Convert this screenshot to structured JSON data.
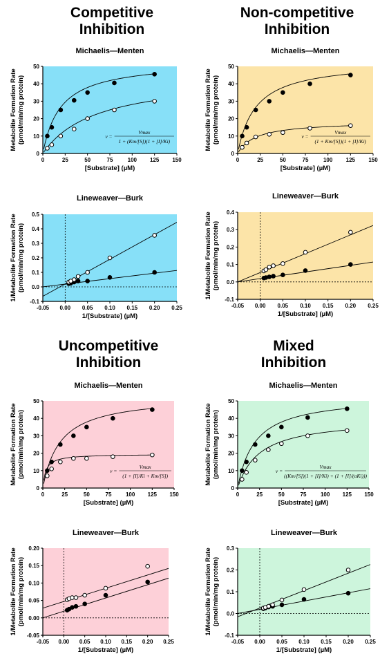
{
  "panels": [
    {
      "title_lines": [
        "Competitive",
        "Inhibition"
      ],
      "bg": "#87e0f8",
      "equation": {
        "lhs": "v =",
        "numerator": "Vmax",
        "denominator": "1 + (Km/[S])(1 + [I]/Ki)"
      }
    },
    {
      "title_lines": [
        "Non-competitive",
        "Inhibition"
      ],
      "bg": "#fce4a8",
      "equation": {
        "lhs": "v =",
        "numerator": "Vmax",
        "denominator": "(1 + Km/[S])(1 + [I]/Ki)"
      }
    },
    {
      "title_lines": [
        "Uncompetitive",
        "Inhibition"
      ],
      "bg": "#fdd0d8",
      "equation": {
        "lhs": "v =",
        "numerator": "Vmax",
        "denominator": "(1 + [I]/Ki + Km/[S])"
      }
    },
    {
      "title_lines": [
        "Mixed",
        "Inhibition"
      ],
      "bg": "#cdf5dc",
      "equation": {
        "lhs": "v =",
        "numerator": "Vmax",
        "denominator": "((Km/[S])(1 + [I]/Ki) + (1 + [I]/(αKi)))"
      }
    }
  ],
  "chart_data": [
    {
      "type": "scatter",
      "title": "Michaelis—Menten",
      "panel": "Competitive Inhibition",
      "xlabel": "[Substrate] (µM)",
      "ylabel": "Metabolite Formation Rate (pmol/min/mg protein)",
      "xlim": [
        0,
        150
      ],
      "ylim": [
        0,
        50
      ],
      "xticks": [
        0,
        25,
        50,
        75,
        100,
        125,
        150
      ],
      "yticks": [
        0,
        10,
        20,
        30,
        40,
        50
      ],
      "series": [
        {
          "marker": "filled",
          "x": [
            5,
            10,
            20,
            35,
            50,
            80,
            125
          ],
          "y": [
            10,
            15,
            25,
            30.5,
            35,
            40.5,
            45.5
          ],
          "fit": {
            "model": "mm",
            "vmax": 53,
            "km": 20
          }
        },
        {
          "marker": "open",
          "x": [
            5,
            10,
            20,
            35,
            50,
            80,
            125
          ],
          "y": [
            3,
            5,
            10,
            14,
            20,
            25,
            30
          ],
          "fit": {
            "model": "mm",
            "vmax": 45,
            "km": 60
          }
        }
      ]
    },
    {
      "type": "scatter",
      "title": "Michaelis—Menten",
      "panel": "Non-competitive Inhibition",
      "xlabel": "[Substrate] (µM)",
      "ylabel": "Metabolite Formation Rate (pmol/min/mg protein)",
      "xlim": [
        0,
        150
      ],
      "ylim": [
        0,
        50
      ],
      "xticks": [
        0,
        25,
        50,
        75,
        100,
        125,
        150
      ],
      "yticks": [
        0,
        10,
        20,
        30,
        40,
        50
      ],
      "series": [
        {
          "marker": "filled",
          "x": [
            5,
            10,
            20,
            35,
            50,
            80,
            125
          ],
          "y": [
            10,
            15,
            25,
            30,
            35,
            40,
            45
          ],
          "fit": {
            "model": "mm",
            "vmax": 53,
            "km": 20
          }
        },
        {
          "marker": "open",
          "x": [
            5,
            10,
            20,
            35,
            50,
            80,
            125
          ],
          "y": [
            3.5,
            6,
            9.5,
            11,
            12,
            14.5,
            16
          ],
          "fit": {
            "model": "mm",
            "vmax": 18.5,
            "km": 20
          }
        }
      ]
    },
    {
      "type": "scatter",
      "title": "Michaelis—Menten",
      "panel": "Uncompetitive Inhibition",
      "xlabel": "[Substrate] (µM)",
      "ylabel": "Metabolite Formation Rate (pmol/min/mg protein)",
      "xlim": [
        0,
        150
      ],
      "ylim": [
        0,
        50
      ],
      "xticks": [
        0,
        25,
        50,
        75,
        100,
        125,
        150
      ],
      "yticks": [
        0,
        10,
        20,
        30,
        40,
        50
      ],
      "series": [
        {
          "marker": "filled",
          "x": [
            5,
            10,
            20,
            35,
            50,
            80,
            125
          ],
          "y": [
            10,
            15,
            25,
            30,
            35,
            40,
            45
          ],
          "fit": {
            "model": "mm",
            "vmax": 53,
            "km": 20
          }
        },
        {
          "marker": "open",
          "x": [
            5,
            10,
            20,
            35,
            50,
            80,
            125
          ],
          "y": [
            7,
            11,
            15,
            17,
            17,
            18,
            19
          ],
          "fit": {
            "model": "mm",
            "vmax": 19.5,
            "km": 3.5
          }
        }
      ]
    },
    {
      "type": "scatter",
      "title": "Michaelis—Menten",
      "panel": "Mixed Inhibition",
      "xlabel": "[Substrate] (µM)",
      "ylabel": "Metabolite Formation Rate (pmol/min/mg protein)",
      "xlim": [
        0,
        150
      ],
      "ylim": [
        0,
        50
      ],
      "xticks": [
        0,
        25,
        50,
        75,
        100,
        125,
        150
      ],
      "yticks": [
        0,
        10,
        20,
        30,
        40,
        50
      ],
      "series": [
        {
          "marker": "filled",
          "x": [
            5,
            10,
            20,
            35,
            50,
            80,
            125
          ],
          "y": [
            10,
            15,
            25,
            30,
            35,
            40.5,
            45.5
          ],
          "fit": {
            "model": "mm",
            "vmax": 53,
            "km": 20
          }
        },
        {
          "marker": "open",
          "x": [
            5,
            10,
            20,
            35,
            50,
            80,
            125
          ],
          "y": [
            5,
            9,
            16,
            22,
            25.5,
            30,
            33
          ],
          "fit": {
            "model": "mm",
            "vmax": 40,
            "km": 25
          }
        }
      ]
    },
    {
      "type": "scatter",
      "title": "Lineweaver—Burk",
      "panel": "Competitive Inhibition",
      "xlabel": "1/[Substrate] (µM)",
      "ylabel": "1/Metabolite Formation Rate (pmol/min/mg protein)",
      "xlim": [
        -0.05,
        0.25
      ],
      "ylim": [
        -0.1,
        0.5
      ],
      "xticks": [
        -0.05,
        0,
        0.05,
        0.1,
        0.15,
        0.2,
        0.25
      ],
      "yticks": [
        -0.1,
        0,
        0.1,
        0.2,
        0.3,
        0.4,
        0.5
      ],
      "xtick_labels": [
        "-0.05",
        "0.00",
        "0.05",
        "0.10",
        "0.15",
        "0.20",
        "0.25"
      ],
      "ytick_labels": [
        "-0.1",
        "0.0",
        "0.1",
        "0.2",
        "0.3",
        "0.4",
        "0.5"
      ],
      "series": [
        {
          "marker": "filled",
          "x": [
            0.008,
            0.0125,
            0.02,
            0.029,
            0.05,
            0.1,
            0.2
          ],
          "y": [
            0.022,
            0.025,
            0.033,
            0.04,
            0.04,
            0.065,
            0.1
          ],
          "fit": {
            "model": "linear",
            "slope": 0.378,
            "intercept": 0.019
          }
        },
        {
          "marker": "open",
          "x": [
            0.008,
            0.0125,
            0.02,
            0.029,
            0.05,
            0.1,
            0.2
          ],
          "y": [
            0.033,
            0.04,
            0.05,
            0.072,
            0.1,
            0.2,
            0.355
          ],
          "fit": {
            "model": "linear",
            "slope": 1.7,
            "intercept": 0.02
          }
        }
      ]
    },
    {
      "type": "scatter",
      "title": "Lineweaver—Burk",
      "panel": "Non-competitive Inhibition",
      "xlabel": "1/[Substrate] (µM)",
      "ylabel": "1/Metabolite Formation Rate (pmol/min/mg protein)",
      "xlim": [
        -0.05,
        0.25
      ],
      "ylim": [
        -0.1,
        0.4
      ],
      "xticks": [
        -0.05,
        0,
        0.05,
        0.1,
        0.15,
        0.2,
        0.25
      ],
      "yticks": [
        -0.1,
        0,
        0.1,
        0.2,
        0.3,
        0.4
      ],
      "xtick_labels": [
        "-0.05",
        "0.00",
        "0.05",
        "0.10",
        "0.15",
        "0.20",
        "0.25"
      ],
      "ytick_labels": [
        "-0.1",
        "0.0",
        "0.1",
        "0.2",
        "0.3",
        "0.4"
      ],
      "series": [
        {
          "marker": "filled",
          "x": [
            0.008,
            0.0125,
            0.02,
            0.029,
            0.05,
            0.1,
            0.2
          ],
          "y": [
            0.022,
            0.025,
            0.029,
            0.033,
            0.04,
            0.065,
            0.1
          ],
          "fit": {
            "model": "linear",
            "slope": 0.38,
            "intercept": 0.019
          }
        },
        {
          "marker": "open",
          "x": [
            0.008,
            0.0125,
            0.02,
            0.029,
            0.05,
            0.1,
            0.2
          ],
          "y": [
            0.063,
            0.07,
            0.085,
            0.093,
            0.105,
            0.17,
            0.285
          ],
          "fit": {
            "model": "linear",
            "slope": 1.08,
            "intercept": 0.054
          }
        }
      ]
    },
    {
      "type": "scatter",
      "title": "Lineweaver—Burk",
      "panel": "Uncompetitive Inhibition",
      "xlabel": "1/[Substrate] (µM)",
      "ylabel": "1/Metabolite Formation Rate (pmol/min/mg protein)",
      "xlim": [
        -0.05,
        0.25
      ],
      "ylim": [
        -0.05,
        0.2
      ],
      "xticks": [
        -0.05,
        0,
        0.05,
        0.1,
        0.15,
        0.2,
        0.25
      ],
      "yticks": [
        -0.05,
        0,
        0.05,
        0.1,
        0.15,
        0.2
      ],
      "xtick_labels": [
        "-0.05",
        "0.00",
        "0.05",
        "0.10",
        "0.15",
        "0.20",
        "0.25"
      ],
      "ytick_labels": [
        "-0.05",
        "0.00",
        "0.05",
        "0.10",
        "0.15",
        "0.20"
      ],
      "series": [
        {
          "marker": "filled",
          "x": [
            0.008,
            0.0125,
            0.02,
            0.029,
            0.05,
            0.1,
            0.2
          ],
          "y": [
            0.022,
            0.025,
            0.03,
            0.033,
            0.04,
            0.065,
            0.103
          ],
          "fit": {
            "model": "linear",
            "slope": 0.38,
            "intercept": 0.019
          }
        },
        {
          "marker": "open",
          "x": [
            0.008,
            0.0125,
            0.02,
            0.029,
            0.05,
            0.1,
            0.2
          ],
          "y": [
            0.052,
            0.055,
            0.058,
            0.058,
            0.065,
            0.085,
            0.148
          ],
          "fit": {
            "model": "linear",
            "slope": 0.38,
            "intercept": 0.047
          }
        }
      ]
    },
    {
      "type": "scatter",
      "title": "Lineweaver—Burk",
      "panel": "Mixed Inhibition",
      "xlabel": "1/[Substrate] (µM)",
      "ylabel": "1/Metabolite Formation Rate (pmol/min/mg protein)",
      "xlim": [
        -0.05,
        0.25
      ],
      "ylim": [
        -0.1,
        0.3
      ],
      "xticks": [
        -0.05,
        0,
        0.05,
        0.1,
        0.15,
        0.2,
        0.25
      ],
      "yticks": [
        -0.1,
        0,
        0.1,
        0.2,
        0.3
      ],
      "xtick_labels": [
        "-0.05",
        "0.00",
        "0.05",
        "0.10",
        "0.15",
        "0.20",
        "0.25"
      ],
      "ytick_labels": [
        "-0.1",
        "0.0",
        "0.1",
        "0.2",
        "0.3"
      ],
      "series": [
        {
          "marker": "filled",
          "x": [
            0.008,
            0.0125,
            0.02,
            0.029,
            0.05,
            0.1,
            0.2
          ],
          "y": [
            0.022,
            0.025,
            0.03,
            0.033,
            0.04,
            0.065,
            0.093
          ],
          "fit": {
            "model": "linear",
            "slope": 0.38,
            "intercept": 0.019
          }
        },
        {
          "marker": "open",
          "x": [
            0.008,
            0.0125,
            0.02,
            0.029,
            0.05,
            0.1,
            0.2
          ],
          "y": [
            0.025,
            0.028,
            0.033,
            0.04,
            0.062,
            0.11,
            0.2
          ],
          "fit": {
            "model": "linear",
            "slope": 0.8,
            "intercept": 0.025
          }
        }
      ]
    }
  ]
}
